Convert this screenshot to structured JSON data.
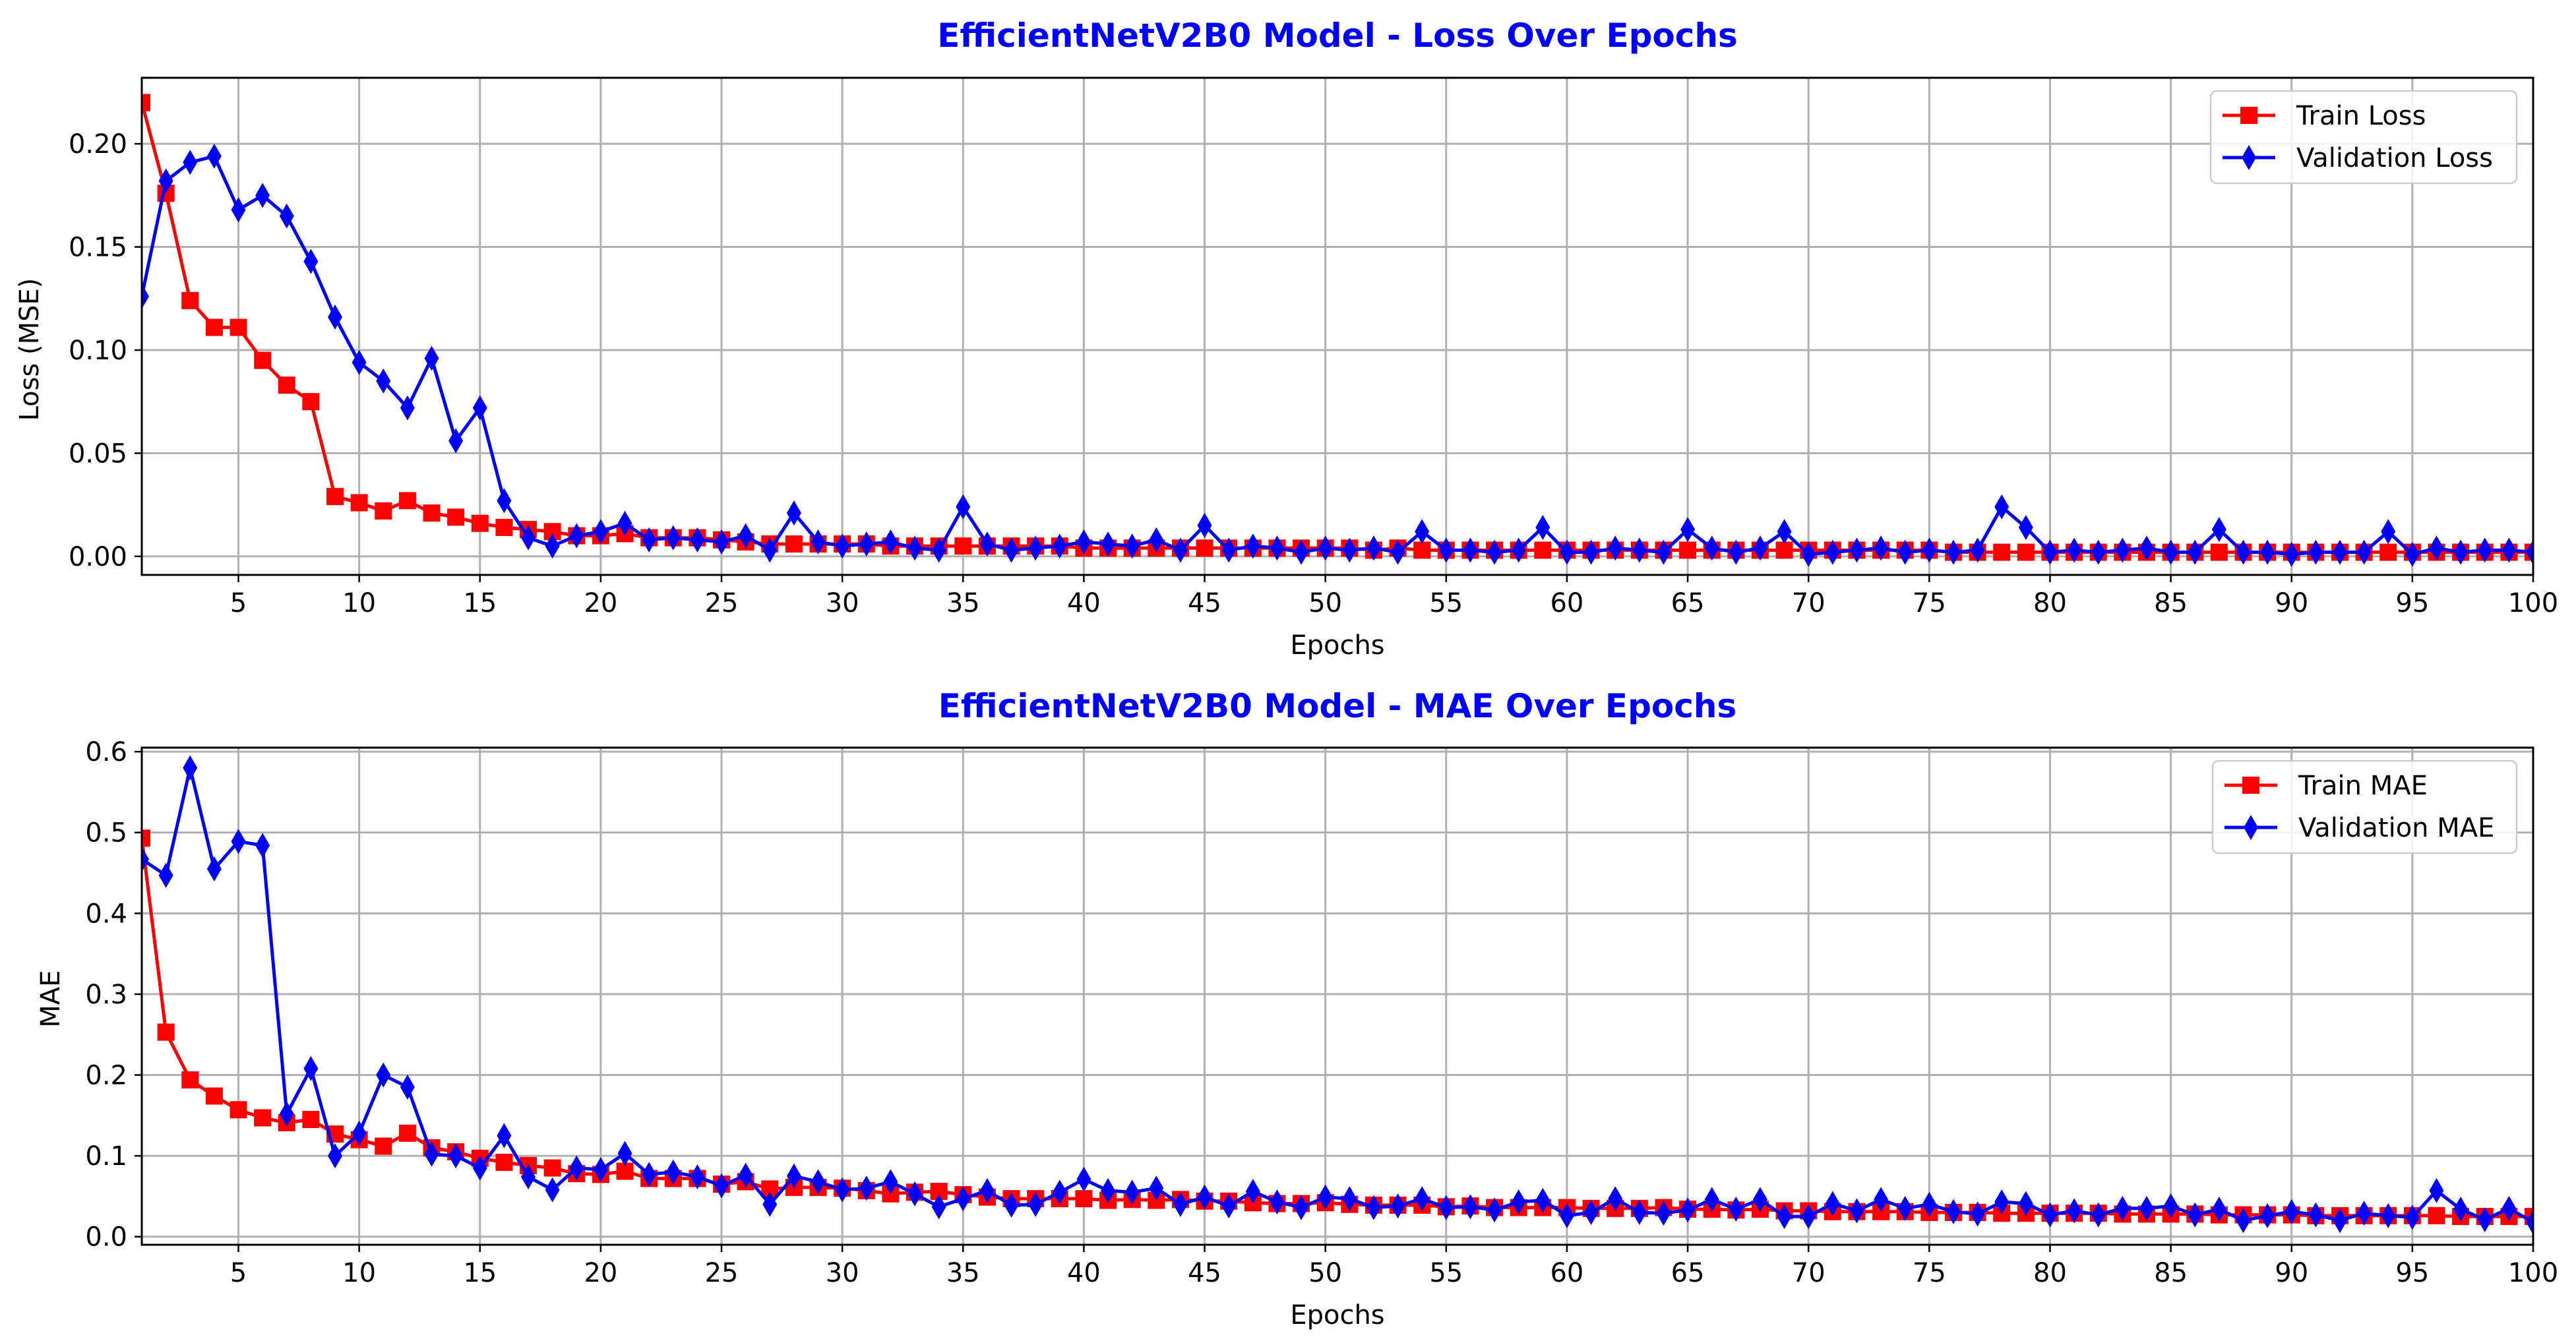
{
  "colors": {
    "title": "#0000ff",
    "train": "#ff0000",
    "validation": "#0000ff",
    "grid": "#b0b0b0",
    "axis": "#000000"
  },
  "chart_data": [
    {
      "type": "line",
      "title": "EfficientNetV2B0 Model - Loss Over Epochs",
      "xlabel": "Epochs",
      "ylabel": "Loss (MSE)",
      "xlim": [
        1,
        100
      ],
      "ylim": [
        -0.009,
        0.232
      ],
      "xticks": [
        5,
        10,
        15,
        20,
        25,
        30,
        35,
        40,
        45,
        50,
        55,
        60,
        65,
        70,
        75,
        80,
        85,
        90,
        95,
        100
      ],
      "yticks": [
        0.0,
        0.05,
        0.1,
        0.15,
        0.2
      ],
      "ytick_labels": [
        "0.00",
        "0.05",
        "0.10",
        "0.15",
        "0.20"
      ],
      "grid": true,
      "legend_position": "top-right",
      "series": [
        {
          "name": "Train Loss",
          "color": "#ff0000",
          "marker": "square",
          "values": [
            0.22,
            0.176,
            0.124,
            0.111,
            0.111,
            0.095,
            0.083,
            0.075,
            0.029,
            0.026,
            0.022,
            0.027,
            0.021,
            0.019,
            0.016,
            0.014,
            0.013,
            0.012,
            0.01,
            0.01,
            0.011,
            0.009,
            0.009,
            0.009,
            0.008,
            0.007,
            0.006,
            0.006,
            0.006,
            0.006,
            0.006,
            0.005,
            0.005,
            0.005,
            0.005,
            0.005,
            0.005,
            0.005,
            0.005,
            0.004,
            0.004,
            0.004,
            0.004,
            0.004,
            0.004,
            0.004,
            0.004,
            0.004,
            0.004,
            0.004,
            0.004,
            0.003,
            0.004,
            0.003,
            0.003,
            0.003,
            0.003,
            0.003,
            0.003,
            0.003,
            0.003,
            0.003,
            0.003,
            0.003,
            0.003,
            0.003,
            0.003,
            0.003,
            0.003,
            0.003,
            0.003,
            0.003,
            0.003,
            0.003,
            0.003,
            0.002,
            0.002,
            0.002,
            0.002,
            0.002,
            0.002,
            0.002,
            0.002,
            0.002,
            0.002,
            0.002,
            0.002,
            0.002,
            0.002,
            0.002,
            0.002,
            0.002,
            0.002,
            0.002,
            0.002,
            0.002,
            0.002,
            0.002,
            0.002,
            0.002
          ]
        },
        {
          "name": "Validation Loss",
          "color": "#0000ff",
          "marker": "thin_diamond",
          "values": [
            0.126,
            0.182,
            0.191,
            0.194,
            0.168,
            0.175,
            0.165,
            0.143,
            0.116,
            0.094,
            0.085,
            0.072,
            0.096,
            0.056,
            0.072,
            0.027,
            0.009,
            0.005,
            0.01,
            0.012,
            0.016,
            0.008,
            0.009,
            0.008,
            0.007,
            0.01,
            0.003,
            0.021,
            0.007,
            0.005,
            0.006,
            0.007,
            0.004,
            0.003,
            0.024,
            0.006,
            0.003,
            0.004,
            0.005,
            0.007,
            0.006,
            0.005,
            0.008,
            0.003,
            0.015,
            0.003,
            0.005,
            0.004,
            0.002,
            0.004,
            0.003,
            0.004,
            0.002,
            0.012,
            0.003,
            0.003,
            0.002,
            0.003,
            0.014,
            0.002,
            0.002,
            0.004,
            0.003,
            0.002,
            0.013,
            0.004,
            0.002,
            0.004,
            0.012,
            0.001,
            0.002,
            0.003,
            0.004,
            0.002,
            0.003,
            0.002,
            0.003,
            0.024,
            0.014,
            0.002,
            0.003,
            0.002,
            0.003,
            0.004,
            0.002,
            0.002,
            0.013,
            0.002,
            0.002,
            0.001,
            0.002,
            0.002,
            0.002,
            0.012,
            0.001,
            0.004,
            0.002,
            0.003,
            0.003,
            0.002
          ]
        }
      ]
    },
    {
      "type": "line",
      "title": "EfficientNetV2B0 Model - MAE Over Epochs",
      "xlabel": "Epochs",
      "ylabel": "MAE",
      "xlim": [
        1,
        100
      ],
      "ylim": [
        -0.01,
        0.605
      ],
      "xticks": [
        5,
        10,
        15,
        20,
        25,
        30,
        35,
        40,
        45,
        50,
        55,
        60,
        65,
        70,
        75,
        80,
        85,
        90,
        95,
        100
      ],
      "yticks": [
        0.0,
        0.1,
        0.2,
        0.3,
        0.4,
        0.5,
        0.6
      ],
      "ytick_labels": [
        "0.0",
        "0.1",
        "0.2",
        "0.3",
        "0.4",
        "0.5",
        "0.6"
      ],
      "grid": true,
      "legend_position": "top-right",
      "series": [
        {
          "name": "Train MAE",
          "color": "#ff0000",
          "marker": "square",
          "values": [
            0.493,
            0.253,
            0.194,
            0.174,
            0.157,
            0.147,
            0.141,
            0.145,
            0.127,
            0.12,
            0.112,
            0.128,
            0.11,
            0.105,
            0.097,
            0.092,
            0.088,
            0.085,
            0.078,
            0.077,
            0.081,
            0.072,
            0.072,
            0.072,
            0.065,
            0.068,
            0.059,
            0.061,
            0.061,
            0.06,
            0.057,
            0.053,
            0.055,
            0.056,
            0.052,
            0.049,
            0.047,
            0.047,
            0.047,
            0.047,
            0.045,
            0.046,
            0.045,
            0.046,
            0.044,
            0.044,
            0.042,
            0.041,
            0.041,
            0.042,
            0.04,
            0.039,
            0.039,
            0.039,
            0.037,
            0.038,
            0.036,
            0.036,
            0.036,
            0.036,
            0.035,
            0.035,
            0.035,
            0.036,
            0.034,
            0.034,
            0.033,
            0.034,
            0.032,
            0.032,
            0.031,
            0.031,
            0.031,
            0.031,
            0.03,
            0.03,
            0.03,
            0.029,
            0.029,
            0.029,
            0.029,
            0.029,
            0.028,
            0.028,
            0.028,
            0.028,
            0.027,
            0.027,
            0.027,
            0.027,
            0.026,
            0.026,
            0.026,
            0.026,
            0.026,
            0.026,
            0.025,
            0.025,
            0.025,
            0.025
          ]
        },
        {
          "name": "Validation MAE",
          "color": "#0000ff",
          "marker": "thin_diamond",
          "values": [
            0.467,
            0.447,
            0.58,
            0.455,
            0.489,
            0.484,
            0.152,
            0.208,
            0.1,
            0.128,
            0.2,
            0.185,
            0.102,
            0.1,
            0.085,
            0.125,
            0.074,
            0.058,
            0.085,
            0.083,
            0.103,
            0.077,
            0.08,
            0.074,
            0.063,
            0.076,
            0.04,
            0.075,
            0.068,
            0.058,
            0.06,
            0.068,
            0.053,
            0.037,
            0.047,
            0.057,
            0.039,
            0.04,
            0.055,
            0.071,
            0.057,
            0.055,
            0.06,
            0.04,
            0.049,
            0.038,
            0.056,
            0.043,
            0.036,
            0.049,
            0.047,
            0.036,
            0.038,
            0.047,
            0.036,
            0.037,
            0.033,
            0.043,
            0.045,
            0.026,
            0.03,
            0.047,
            0.03,
            0.029,
            0.033,
            0.046,
            0.034,
            0.046,
            0.025,
            0.025,
            0.041,
            0.032,
            0.046,
            0.035,
            0.04,
            0.031,
            0.028,
            0.043,
            0.041,
            0.027,
            0.032,
            0.027,
            0.035,
            0.035,
            0.038,
            0.027,
            0.034,
            0.02,
            0.026,
            0.031,
            0.027,
            0.02,
            0.029,
            0.026,
            0.024,
            0.057,
            0.034,
            0.021,
            0.035,
            0.018
          ]
        }
      ]
    }
  ]
}
